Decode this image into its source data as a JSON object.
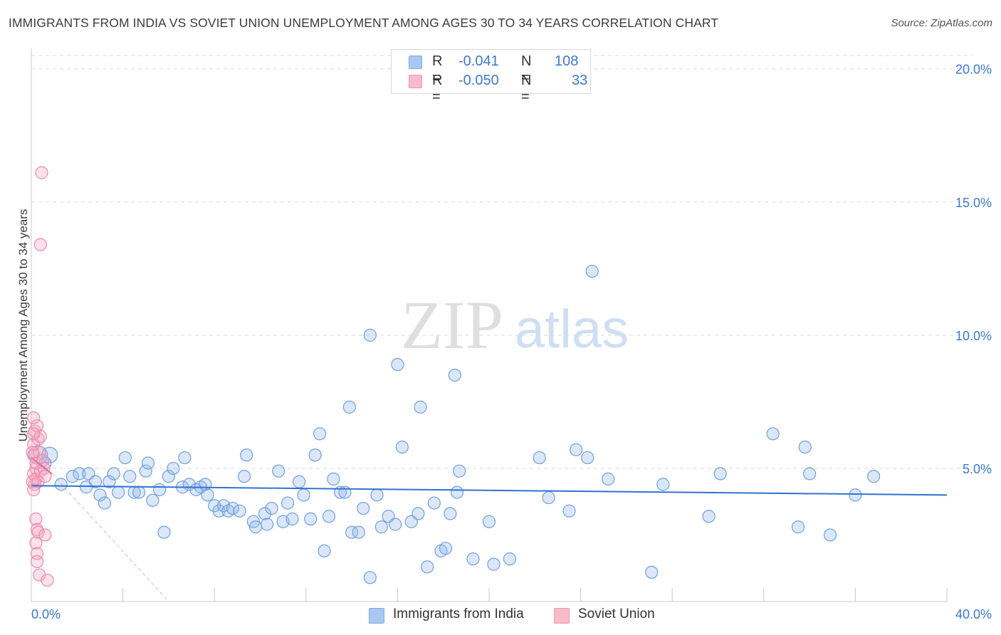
{
  "title": "IMMIGRANTS FROM INDIA VS SOVIET UNION UNEMPLOYMENT AMONG AGES 30 TO 34 YEARS CORRELATION CHART",
  "source": "Source: ZipAtlas.com",
  "watermark": {
    "zip": "ZIP",
    "atlas": "atlas"
  },
  "legend": {
    "r_label": "R =",
    "n_label": "N =",
    "rows": [
      {
        "r": "-0.041",
        "n": "108",
        "color": "#a9c7f0",
        "border": "#7ea9e3"
      },
      {
        "r": "-0.050",
        "n": "33",
        "color": "#f6bccd",
        "border": "#ee95b0"
      }
    ]
  },
  "series_labels": {
    "india": "Immigrants from India",
    "soviet": "Soviet Union"
  },
  "colors": {
    "india_fill": "rgba(151,186,236,0.35)",
    "india_stroke": "#6f9fe0",
    "india_line": "#2f73d1",
    "soviet_fill": "rgba(245,170,195,0.35)",
    "soviet_stroke": "#ec8aaa",
    "soviet_line": "#e8709a",
    "tick_text": "#3b78d0",
    "grid": "#d9d9d9"
  },
  "chart_data": {
    "type": "scatter",
    "title": "IMMIGRANTS FROM INDIA VS SOVIET UNION UNEMPLOYMENT AMONG AGES 30 TO 34 YEARS CORRELATION CHART",
    "xlabel": "",
    "ylabel": "Unemployment Among Ages 30 to 34 years",
    "xlim": [
      0,
      40
    ],
    "ylim": [
      0,
      20.5
    ],
    "x_ticks": [
      "0.0%",
      "40.0%"
    ],
    "y_ticks": [
      {
        "value": 5,
        "label": "5.0%"
      },
      {
        "value": 10,
        "label": "10.0%"
      },
      {
        "value": 15,
        "label": "15.0%"
      },
      {
        "value": 20,
        "label": "20.0%"
      }
    ],
    "series": [
      {
        "name": "Immigrants from India",
        "trend": [
          [
            0,
            4.35
          ],
          [
            40,
            4.0
          ]
        ],
        "points": [
          [
            0.3,
            5.5,
            3
          ],
          [
            0.8,
            5.5,
            2
          ],
          [
            0.6,
            5.2,
            1
          ],
          [
            1.3,
            4.4,
            1
          ],
          [
            1.8,
            4.7,
            1
          ],
          [
            2.1,
            4.8,
            1
          ],
          [
            2.4,
            4.3,
            1
          ],
          [
            2.5,
            4.8,
            1
          ],
          [
            2.8,
            4.5,
            1
          ],
          [
            3.0,
            4.0,
            1
          ],
          [
            3.2,
            3.7,
            1
          ],
          [
            3.4,
            4.5,
            1
          ],
          [
            3.6,
            4.8,
            1
          ],
          [
            3.8,
            4.1,
            1
          ],
          [
            4.1,
            5.4,
            1
          ],
          [
            4.3,
            4.7,
            1
          ],
          [
            4.5,
            4.1,
            1
          ],
          [
            4.7,
            4.1,
            1
          ],
          [
            5.0,
            4.9,
            1
          ],
          [
            5.1,
            5.2,
            1
          ],
          [
            5.3,
            3.8,
            1
          ],
          [
            5.6,
            4.2,
            1
          ],
          [
            5.8,
            2.6,
            1
          ],
          [
            6.0,
            4.7,
            1
          ],
          [
            6.2,
            5.0,
            1
          ],
          [
            6.6,
            4.3,
            1
          ],
          [
            6.7,
            5.4,
            1
          ],
          [
            6.9,
            4.4,
            1
          ],
          [
            7.2,
            4.2,
            1
          ],
          [
            7.4,
            4.3,
            1
          ],
          [
            7.6,
            4.4,
            1
          ],
          [
            7.7,
            4.0,
            1
          ],
          [
            8.0,
            3.6,
            1
          ],
          [
            8.2,
            3.4,
            1
          ],
          [
            8.4,
            3.6,
            1
          ],
          [
            8.6,
            3.4,
            1
          ],
          [
            8.8,
            3.5,
            1
          ],
          [
            9.1,
            3.4,
            1
          ],
          [
            9.3,
            4.7,
            1
          ],
          [
            9.4,
            5.5,
            1
          ],
          [
            9.7,
            3.0,
            1
          ],
          [
            9.8,
            2.8,
            1
          ],
          [
            10.2,
            3.3,
            1
          ],
          [
            10.3,
            2.9,
            1
          ],
          [
            10.5,
            3.5,
            1
          ],
          [
            10.8,
            4.9,
            1
          ],
          [
            11.0,
            3.0,
            1
          ],
          [
            11.2,
            3.7,
            1
          ],
          [
            11.4,
            3.1,
            1
          ],
          [
            11.7,
            4.5,
            1
          ],
          [
            11.9,
            4.0,
            1
          ],
          [
            12.2,
            3.1,
            1
          ],
          [
            12.4,
            5.5,
            1
          ],
          [
            12.6,
            6.3,
            1
          ],
          [
            12.8,
            1.9,
            1
          ],
          [
            13.0,
            3.2,
            1
          ],
          [
            13.2,
            4.6,
            1
          ],
          [
            13.5,
            4.1,
            1
          ],
          [
            13.7,
            4.1,
            1
          ],
          [
            13.9,
            7.3,
            1
          ],
          [
            14.0,
            2.6,
            1
          ],
          [
            14.3,
            2.6,
            1
          ],
          [
            14.5,
            3.5,
            1
          ],
          [
            14.8,
            10.0,
            1
          ],
          [
            14.8,
            0.9,
            1
          ],
          [
            15.1,
            4.0,
            1
          ],
          [
            15.3,
            2.8,
            1
          ],
          [
            15.6,
            3.2,
            1
          ],
          [
            15.9,
            2.9,
            1
          ],
          [
            16.0,
            8.9,
            1
          ],
          [
            16.2,
            5.8,
            1
          ],
          [
            16.6,
            3.0,
            1
          ],
          [
            16.9,
            3.3,
            1
          ],
          [
            17.0,
            7.3,
            1
          ],
          [
            17.3,
            1.3,
            1
          ],
          [
            17.6,
            3.7,
            1
          ],
          [
            17.9,
            1.9,
            1
          ],
          [
            18.1,
            2.0,
            1
          ],
          [
            18.3,
            3.3,
            1
          ],
          [
            18.5,
            8.5,
            1
          ],
          [
            18.6,
            4.1,
            1
          ],
          [
            18.7,
            4.9,
            1
          ],
          [
            19.3,
            1.6,
            1
          ],
          [
            20.0,
            3.0,
            1
          ],
          [
            20.2,
            1.4,
            1
          ],
          [
            20.9,
            1.6,
            1
          ],
          [
            22.2,
            5.4,
            1
          ],
          [
            22.6,
            3.9,
            1
          ],
          [
            23.5,
            3.4,
            1
          ],
          [
            23.8,
            5.7,
            1
          ],
          [
            24.3,
            5.4,
            1
          ],
          [
            24.5,
            12.4,
            1
          ],
          [
            25.2,
            4.6,
            1
          ],
          [
            27.1,
            1.1,
            1
          ],
          [
            27.6,
            4.4,
            1
          ],
          [
            29.6,
            3.2,
            1
          ],
          [
            30.1,
            4.8,
            1
          ],
          [
            32.4,
            6.3,
            1
          ],
          [
            33.5,
            2.8,
            1
          ],
          [
            33.8,
            5.8,
            1
          ],
          [
            34.0,
            4.8,
            1
          ],
          [
            34.9,
            2.5,
            1
          ],
          [
            36.0,
            4.0,
            1
          ],
          [
            36.8,
            4.7,
            1
          ]
        ]
      },
      {
        "name": "Soviet Union",
        "trend": [
          [
            0,
            5.4
          ],
          [
            0.9,
            4.8
          ]
        ],
        "trend_extended": [
          [
            0.9,
            4.8
          ],
          [
            6.0,
            0.0
          ]
        ],
        "points": [
          [
            0.1,
            5.5,
            1
          ],
          [
            0.2,
            5.0,
            1
          ],
          [
            0.1,
            4.8,
            1
          ],
          [
            0.2,
            4.6,
            1
          ],
          [
            0.15,
            4.4,
            1
          ],
          [
            0.1,
            4.2,
            1
          ],
          [
            0.3,
            4.5,
            1
          ],
          [
            0.4,
            4.9,
            1
          ],
          [
            0.2,
            5.2,
            1
          ],
          [
            0.35,
            5.6,
            1
          ],
          [
            0.5,
            5.3,
            1
          ],
          [
            0.1,
            5.9,
            1
          ],
          [
            0.3,
            6.1,
            1
          ],
          [
            0.15,
            6.4,
            1
          ],
          [
            0.25,
            6.6,
            1
          ],
          [
            0.1,
            6.9,
            1
          ],
          [
            0.4,
            6.2,
            1
          ],
          [
            0.55,
            5.0,
            1
          ],
          [
            0.6,
            4.7,
            1
          ],
          [
            0.2,
            3.1,
            1
          ],
          [
            0.25,
            2.7,
            1
          ],
          [
            0.3,
            2.6,
            1
          ],
          [
            0.2,
            2.2,
            1
          ],
          [
            0.25,
            1.8,
            1
          ],
          [
            0.25,
            1.5,
            1
          ],
          [
            0.35,
            1.0,
            1
          ],
          [
            0.7,
            0.8,
            1
          ],
          [
            0.6,
            2.5,
            1
          ],
          [
            0.4,
            13.4,
            1
          ],
          [
            0.45,
            16.1,
            1
          ],
          [
            0.05,
            5.6,
            1
          ],
          [
            0.05,
            4.5,
            1
          ],
          [
            0.1,
            6.3,
            1
          ]
        ]
      }
    ]
  }
}
